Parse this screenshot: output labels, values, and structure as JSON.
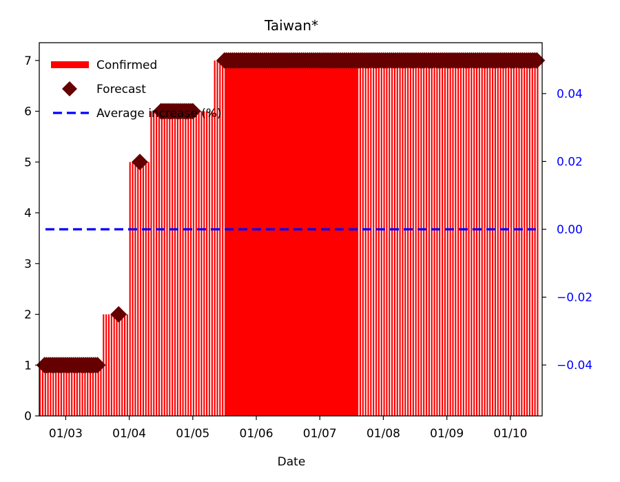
{
  "chart_data": {
    "type": "bar",
    "title": "Taiwan*",
    "xlabel": "Date",
    "ylabel": "",
    "ylim": [
      0,
      7.35
    ],
    "y_ticks": [
      0,
      1,
      2,
      3,
      4,
      5,
      6,
      7
    ],
    "y2lim": [
      -0.055,
      0.055
    ],
    "y2_ticks": [
      -0.04,
      -0.02,
      0.0,
      0.02,
      0.04
    ],
    "y2_tick_labels": [
      "−0.04",
      "−0.02",
      "0.00",
      "0.02",
      "0.04"
    ],
    "x_tick_labels": [
      "01/03",
      "01/04",
      "01/05",
      "01/06",
      "01/07",
      "01/08",
      "01/09",
      "01/10"
    ],
    "legend_position": "upper-left",
    "colors": {
      "confirmed": "#ff0000",
      "forecast": "#640000",
      "average": "#0000ff",
      "right_axis": "#0000ff"
    },
    "series": [
      {
        "name": "Confirmed",
        "kind": "bar",
        "x": [
          "01/03",
          "01/04",
          "01/05",
          "01/06",
          "01/07",
          "01/08",
          "01/09",
          "01/10"
        ],
        "values": [
          1,
          5,
          6,
          7,
          7,
          7,
          7,
          7
        ],
        "steps": [
          {
            "from": "2020-01-02",
            "value": 1
          },
          {
            "from": "2020-01-03 14:00",
            "value": 2
          },
          {
            "from": "2020-01-04 00:00",
            "value": 5
          },
          {
            "from": "2020-01-04 08:00",
            "value": 6
          },
          {
            "from": "2020-01-05 08:00",
            "value": 7
          }
        ]
      },
      {
        "name": "Forecast",
        "kind": "scatter",
        "marker": "diamond",
        "points": [
          {
            "x": "2020-01-02 16:00",
            "y": 1
          },
          {
            "x": "2020-01-03 00:00",
            "y": 1
          },
          {
            "x": "2020-01-03 12:00",
            "y": 1
          },
          {
            "x": "2020-01-03 20:00",
            "y": 2
          },
          {
            "x": "2020-01-04 04:00",
            "y": 5
          },
          {
            "x": "2020-01-04 12:00",
            "y": 6
          },
          {
            "x": "2020-01-05 00:00",
            "y": 6
          },
          {
            "x": "2020-01-05 12:00",
            "y": 7
          },
          {
            "x": "2020-01-06 00:00",
            "y": 7
          },
          {
            "x": "2020-01-07 00:00",
            "y": 7
          },
          {
            "x": "2020-01-08 00:00",
            "y": 7
          },
          {
            "x": "2020-01-09 00:00",
            "y": 7
          },
          {
            "x": "2020-01-10 00:00",
            "y": 7
          },
          {
            "x": "2020-01-10 10:00",
            "y": 7
          }
        ]
      },
      {
        "name": "Average increase (%)",
        "kind": "line",
        "axis": "right",
        "style": "dashed",
        "value": 0.0
      }
    ]
  }
}
